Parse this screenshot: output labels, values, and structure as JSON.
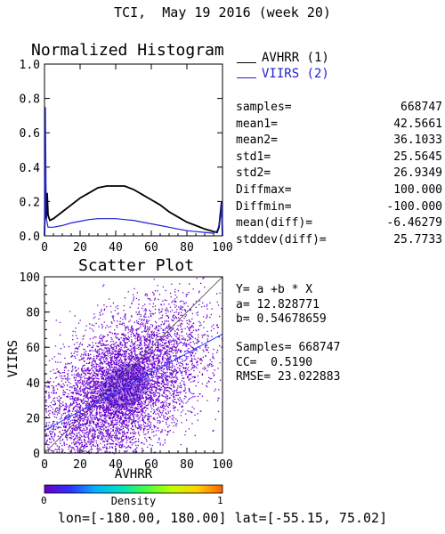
{
  "title": "TCI,  May 19 2016 (week 20)",
  "chart_data": [
    {
      "type": "line",
      "title": "Normalized Histogram",
      "xlim": [
        0,
        100
      ],
      "ylim": [
        0,
        1.0
      ],
      "xticks": [
        "0",
        "20",
        "40",
        "60",
        "80",
        "100"
      ],
      "yticks": [
        "0.0",
        "0.2",
        "0.4",
        "0.6",
        "0.8",
        "1.0"
      ],
      "series": [
        {
          "name": "AVHRR (1)",
          "color": "#000000",
          "x": [
            0,
            0.5,
            1,
            1.5,
            2,
            3,
            5,
            10,
            15,
            20,
            25,
            30,
            35,
            40,
            45,
            50,
            55,
            60,
            65,
            70,
            75,
            80,
            85,
            90,
            95,
            97,
            98,
            99,
            99.5,
            100
          ],
          "y": [
            0.0,
            0.3,
            0.1,
            0.25,
            0.12,
            0.09,
            0.1,
            0.14,
            0.18,
            0.22,
            0.25,
            0.28,
            0.29,
            0.29,
            0.29,
            0.27,
            0.24,
            0.21,
            0.18,
            0.14,
            0.11,
            0.08,
            0.06,
            0.04,
            0.025,
            0.02,
            0.05,
            0.15,
            0.2,
            0.0
          ]
        },
        {
          "name": "VIIRS (2)",
          "color": "#2020d0",
          "x": [
            0,
            0.5,
            1,
            2,
            3,
            5,
            10,
            15,
            20,
            25,
            30,
            35,
            40,
            45,
            50,
            55,
            60,
            65,
            70,
            75,
            80,
            85,
            90,
            95,
            97,
            98,
            99,
            99.5,
            100
          ],
          "y": [
            0.0,
            0.75,
            0.1,
            0.05,
            0.05,
            0.05,
            0.06,
            0.075,
            0.085,
            0.095,
            0.1,
            0.1,
            0.1,
            0.095,
            0.09,
            0.08,
            0.07,
            0.06,
            0.05,
            0.04,
            0.03,
            0.025,
            0.02,
            0.015,
            0.03,
            0.06,
            0.12,
            0.2,
            0.0
          ]
        }
      ]
    },
    {
      "type": "scatter",
      "title": "Scatter Plot",
      "xlabel": "AVHRR",
      "ylabel": "VIIRS",
      "xlim": [
        0,
        100
      ],
      "ylim": [
        0,
        100
      ],
      "xticks": [
        "0",
        "20",
        "40",
        "60",
        "80",
        "100"
      ],
      "yticks": [
        "0",
        "20",
        "40",
        "60",
        "80",
        "100"
      ],
      "regression": {
        "intercept": 12.828771,
        "slope": 0.54678659
      },
      "cc": 0.519,
      "samples": 668747,
      "point_color": "#6a00d0"
    }
  ],
  "stats": [
    {
      "key": "samples=",
      "value": "668747"
    },
    {
      "key": "mean1=",
      "value": "42.5661"
    },
    {
      "key": "mean2=",
      "value": "36.1033"
    },
    {
      "key": "std1=",
      "value": "25.5645"
    },
    {
      "key": "std2=",
      "value": "26.9349"
    },
    {
      "key": "Diffmax=",
      "value": "100.000"
    },
    {
      "key": "Diffmin=",
      "value": "-100.000"
    },
    {
      "key": "mean(diff)=",
      "value": "-6.46279"
    },
    {
      "key": "stddev(diff)=",
      "value": "25.7733"
    }
  ],
  "regression_text": {
    "equation": "Y= a +b * X",
    "a": "a= 12.828771",
    "b": "b= 0.54678659",
    "samples": "Samples= 668747",
    "cc": "CC=  0.5190",
    "rmse": "RMSE= 23.022883"
  },
  "colorbar": {
    "label": "Density",
    "min_label": "0",
    "max_label": "1",
    "colors": [
      "#6a00c8",
      "#3030ff",
      "#00b0ff",
      "#00e0c0",
      "#40ff40",
      "#c0ff00",
      "#ffd000",
      "#ff6000"
    ]
  },
  "footer": "lon=[-180.00, 180.00] lat=[-55.15, 75.02]"
}
